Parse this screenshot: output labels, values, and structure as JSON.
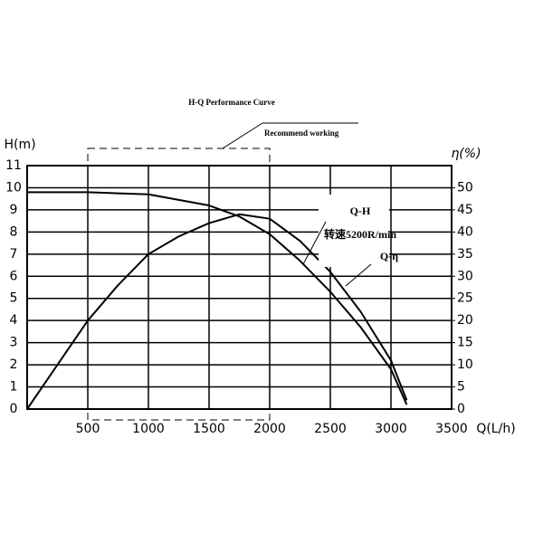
{
  "chart_data": {
    "type": "line",
    "title": "H-Q Performance Curve",
    "annotations": [
      "Recommend working",
      "Q-H",
      "转速5200R/min",
      "Q-η"
    ],
    "x_label": "Q(L/h)",
    "y_label": "H(m)",
    "y2_label": "η(%)",
    "xlim": [
      0,
      3500
    ],
    "xticks": [
      500,
      1000,
      1500,
      2000,
      2500,
      3000,
      3500
    ],
    "ylim": [
      0,
      11
    ],
    "yticks": [
      0,
      1,
      2,
      3,
      4,
      5,
      6,
      7,
      8,
      9,
      10,
      11
    ],
    "y2lim": [
      0,
      55
    ],
    "y2ticks": [
      0,
      5,
      10,
      15,
      20,
      25,
      30,
      35,
      40,
      45,
      50
    ],
    "grid": true,
    "series": [
      {
        "name": "Q-H",
        "color": "#000000",
        "x": [
          0,
          500,
          1000,
          1500,
          1750,
          2000,
          2250,
          2500,
          2750,
          3000,
          3130
        ],
        "values": [
          9.8,
          9.8,
          9.7,
          9.2,
          8.7,
          7.9,
          6.7,
          5.3,
          3.7,
          1.8,
          0.2
        ]
      },
      {
        "name": "Q-η",
        "color": "#000000",
        "axis": "y2",
        "x": [
          0,
          250,
          500,
          750,
          1000,
          1250,
          1500,
          1750,
          2000,
          2250,
          2500,
          2750,
          3000,
          3130
        ],
        "values": [
          0,
          10,
          20,
          28,
          35,
          39,
          42,
          44,
          43,
          38,
          31,
          22,
          11,
          2
        ]
      }
    ]
  }
}
